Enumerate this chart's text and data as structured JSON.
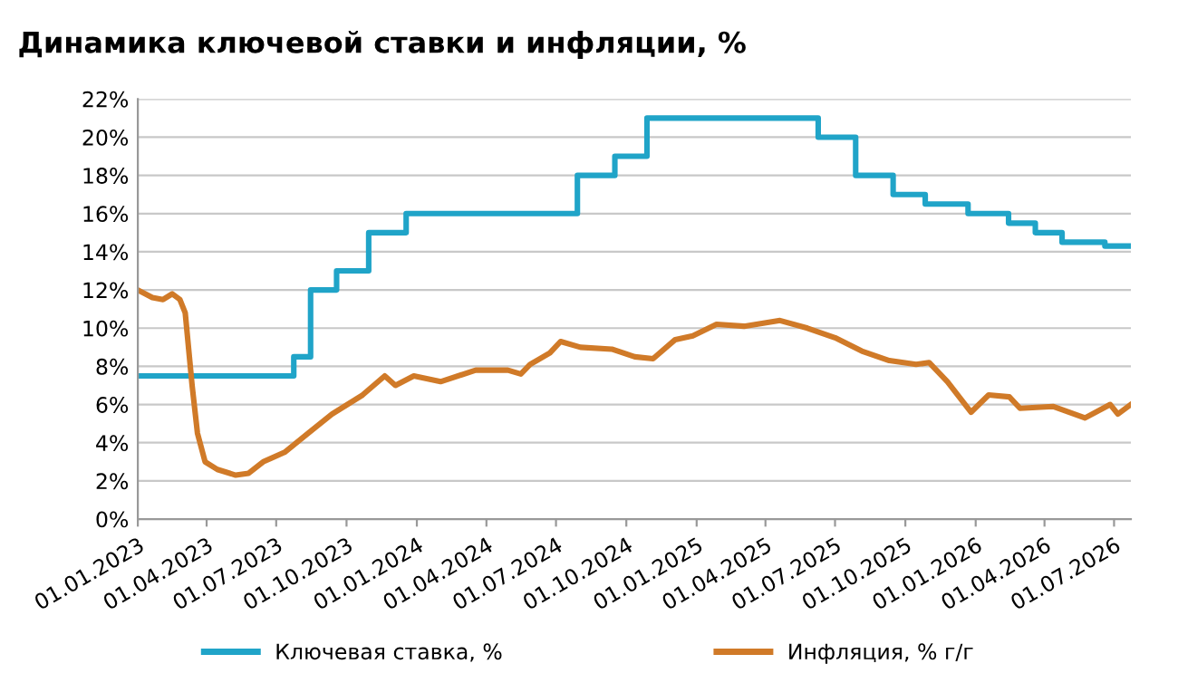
{
  "chart_data": {
    "type": "line",
    "title": "Динамика ключевой ставки и инфляции, %",
    "series": [
      {
        "name": "Ключевая ставка, %",
        "type": "step",
        "color": "#20a4c8",
        "x": [
          "2023-01-01",
          "2023-07-24",
          "2023-08-15",
          "2023-09-18",
          "2023-10-30",
          "2023-12-18",
          "2024-07-29",
          "2024-09-16",
          "2024-10-28",
          "2025-06-09",
          "2025-07-28",
          "2025-09-15",
          "2025-10-27",
          "2025-12-22",
          "2026-02-13",
          "2026-03-20",
          "2026-04-24",
          "2026-06-19",
          "2026-07-23"
        ],
        "values": [
          7.5,
          8.5,
          12,
          13,
          15,
          16,
          18,
          19,
          21,
          20,
          18,
          17,
          16.5,
          16,
          15.5,
          15,
          14.5,
          14.3,
          14.3
        ]
      },
      {
        "name": "Инфляция, % г/г",
        "color": "#d07a28",
        "x": [
          "2023-01-01",
          "2023-01-20",
          "2023-02-03",
          "2023-02-15",
          "2023-02-25",
          "2023-03-04",
          "2023-03-13",
          "2023-03-20",
          "2023-03-30",
          "2023-04-15",
          "2023-05-09",
          "2023-05-26",
          "2023-06-14",
          "2023-07-12",
          "2023-08-12",
          "2023-09-12",
          "2023-10-22",
          "2023-11-20",
          "2023-12-04",
          "2023-12-28",
          "2024-02-01",
          "2024-03-18",
          "2024-04-29",
          "2024-05-16",
          "2024-05-28",
          "2024-06-23",
          "2024-07-07",
          "2024-08-02",
          "2024-09-12",
          "2024-10-12",
          "2024-11-05",
          "2024-12-04",
          "2024-12-27",
          "2025-01-27",
          "2025-03-04",
          "2025-04-20",
          "2025-05-26",
          "2025-07-01",
          "2025-08-05",
          "2025-09-10",
          "2025-10-15",
          "2025-11-01",
          "2025-11-25",
          "2025-12-26",
          "2026-01-18",
          "2026-02-14",
          "2026-02-28",
          "2026-04-12",
          "2026-05-24",
          "2026-06-26",
          "2026-07-06",
          "2026-07-23"
        ],
        "values": [
          12.0,
          11.6,
          11.5,
          11.8,
          11.5,
          10.8,
          7.0,
          4.5,
          3.0,
          2.6,
          2.3,
          2.4,
          3.0,
          3.5,
          4.5,
          5.5,
          6.5,
          7.5,
          7.0,
          7.5,
          7.2,
          7.8,
          7.8,
          7.6,
          8.1,
          8.7,
          9.3,
          9.0,
          8.9,
          8.5,
          8.4,
          9.4,
          9.6,
          10.2,
          10.1,
          10.4,
          10.0,
          9.5,
          8.8,
          8.3,
          8.1,
          8.2,
          7.2,
          5.6,
          6.5,
          6.4,
          5.8,
          5.9,
          5.3,
          6.0,
          5.5,
          6.0
        ]
      }
    ],
    "xlim": [
      "2023-01-01",
      "2026-07-23"
    ],
    "xticks": [
      {
        "value": "2023-01-01",
        "label": "01.01.2023"
      },
      {
        "value": "2023-04-01",
        "label": "01.04.2023"
      },
      {
        "value": "2023-07-01",
        "label": "01.07.2023"
      },
      {
        "value": "2023-10-01",
        "label": "01.10.2023"
      },
      {
        "value": "2024-01-01",
        "label": "01.01.2024"
      },
      {
        "value": "2024-04-01",
        "label": "01.04.2024"
      },
      {
        "value": "2024-07-01",
        "label": "01.07.2024"
      },
      {
        "value": "2024-10-01",
        "label": "01.10.2024"
      },
      {
        "value": "2025-01-01",
        "label": "01.01.2025"
      },
      {
        "value": "2025-04-01",
        "label": "01.04.2025"
      },
      {
        "value": "2025-07-01",
        "label": "01.07.2025"
      },
      {
        "value": "2025-10-01",
        "label": "01.10.2025"
      },
      {
        "value": "2026-01-01",
        "label": "01.01.2026"
      },
      {
        "value": "2026-04-01",
        "label": "01.04.2026"
      },
      {
        "value": "2026-07-01",
        "label": "01.07.2026"
      }
    ],
    "ylim": [
      0,
      22
    ],
    "yticks": [
      {
        "value": 0,
        "label": "0%"
      },
      {
        "value": 2,
        "label": "2%"
      },
      {
        "value": 4,
        "label": "4%"
      },
      {
        "value": 6,
        "label": "6%"
      },
      {
        "value": 8,
        "label": "8%"
      },
      {
        "value": 10,
        "label": "10%"
      },
      {
        "value": 12,
        "label": "12%"
      },
      {
        "value": 14,
        "label": "14%"
      },
      {
        "value": 16,
        "label": "16%"
      },
      {
        "value": 18,
        "label": "18%"
      },
      {
        "value": 20,
        "label": "20%"
      },
      {
        "value": 22,
        "label": "22%"
      }
    ],
    "grid": "y",
    "legend": "bottom"
  }
}
